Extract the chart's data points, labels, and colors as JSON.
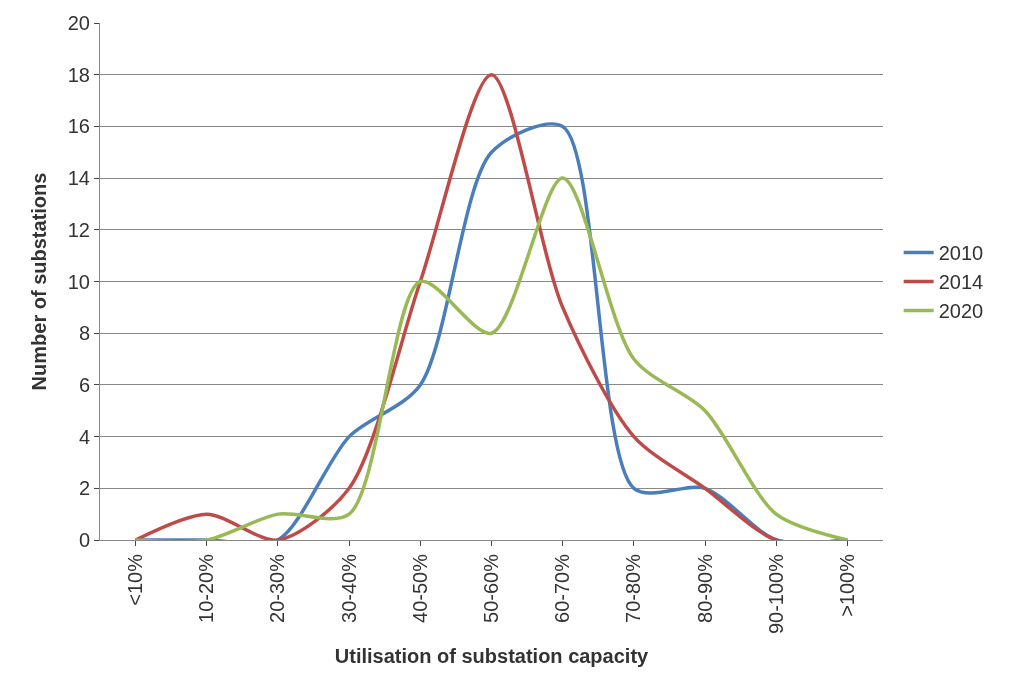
{
  "chart_data": {
    "type": "line",
    "xlabel": "Utilisation of substation capacity",
    "ylabel": "Number of substations",
    "categories": [
      "<10%",
      "10-20%",
      "20-30%",
      "30-40%",
      "40-50%",
      "50-60%",
      "60-70%",
      "70-80%",
      "80-90%",
      "90-100%",
      ">100%"
    ],
    "series": [
      {
        "name": "2010",
        "color": "#4a7ebb",
        "values": [
          0,
          0,
          0,
          4,
          6,
          15,
          16,
          2,
          2,
          0,
          0
        ]
      },
      {
        "name": "2014",
        "color": "#be4b48",
        "values": [
          0,
          1,
          0,
          2,
          10,
          18,
          9,
          4,
          2,
          0,
          0
        ]
      },
      {
        "name": "2020",
        "color": "#98b954",
        "values": [
          0,
          0,
          1,
          1,
          10,
          8,
          14,
          7,
          5,
          1,
          0
        ]
      }
    ],
    "ylim": [
      0,
      20
    ],
    "yticks": [
      0,
      2,
      4,
      6,
      8,
      10,
      12,
      14,
      16,
      18,
      20
    ],
    "grid": "y",
    "legend": "right",
    "marker": "none",
    "line_style": "solid"
  }
}
